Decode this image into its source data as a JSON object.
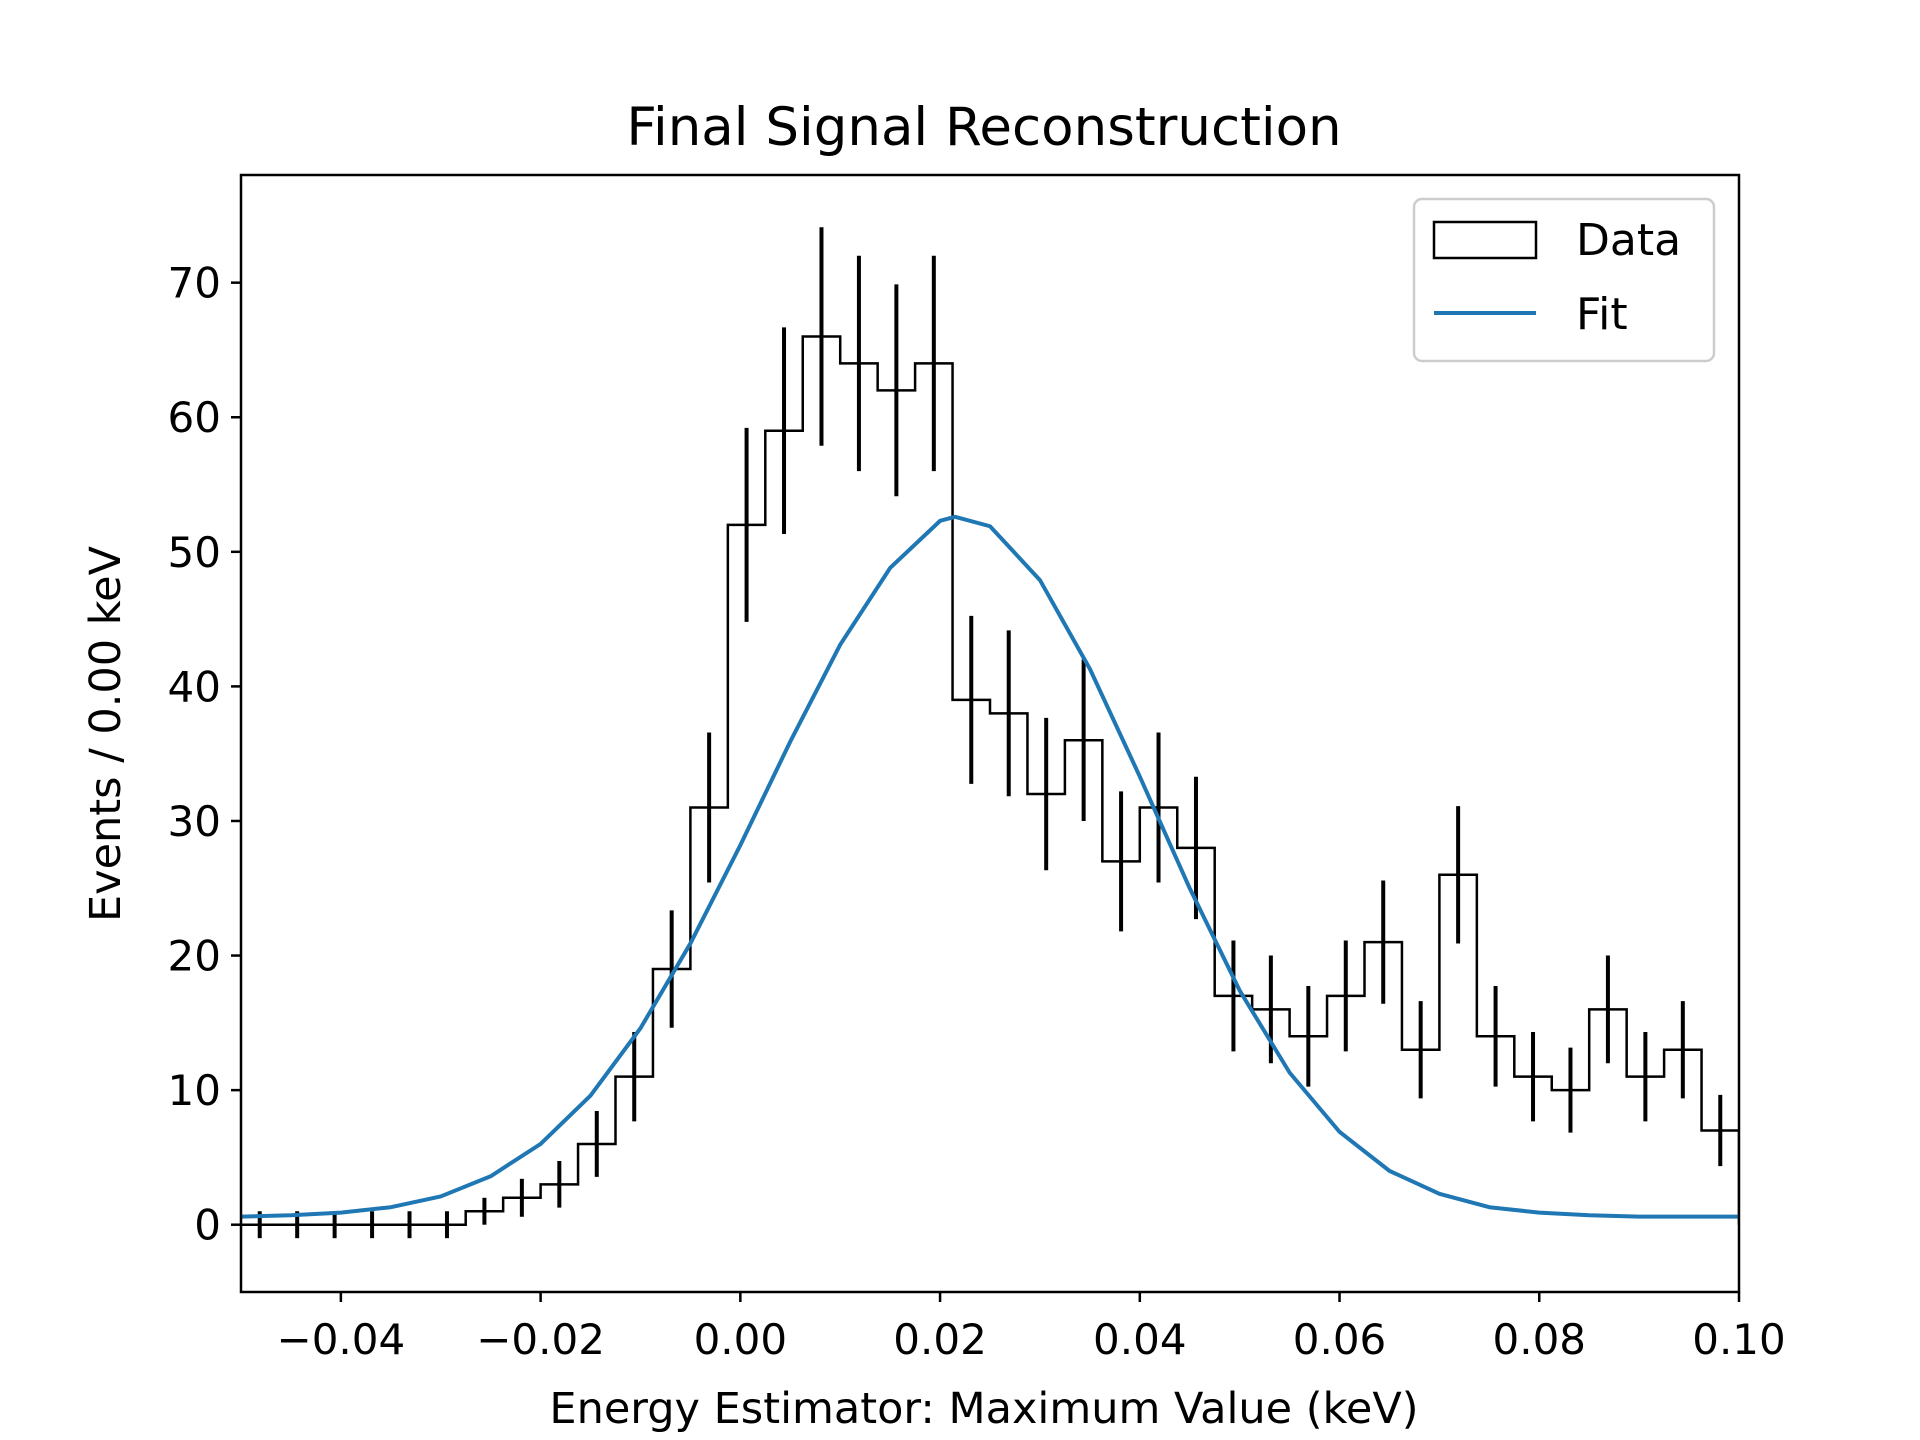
{
  "chart_data": {
    "type": "histogram",
    "title": "Final Signal Reconstruction",
    "xlabel": "Energy Estimator: Maximum Value (keV)",
    "ylabel": "Events / 0.00 keV",
    "xlim": [
      -0.05,
      0.1
    ],
    "ylim": [
      -5,
      78
    ],
    "xticks": [
      -0.04,
      -0.02,
      0.0,
      0.02,
      0.04,
      0.06,
      0.08,
      0.1
    ],
    "xtick_labels": [
      "−0.04",
      "−0.02",
      "0.00",
      "0.02",
      "0.04",
      "0.06",
      "0.08",
      "0.10"
    ],
    "yticks": [
      0,
      10,
      20,
      30,
      40,
      50,
      60,
      70
    ],
    "ytick_labels": [
      "0",
      "10",
      "20",
      "30",
      "40",
      "50",
      "60",
      "70"
    ],
    "grid": false,
    "legend_position": "top-right",
    "legend": [
      {
        "label": "Data",
        "style": "outline-box",
        "color": "#000000"
      },
      {
        "label": "Fit",
        "style": "line",
        "color": "#1f77b4"
      }
    ],
    "series": [
      {
        "name": "Data",
        "kind": "step-histogram-with-errorbars",
        "color": "#000000",
        "bin_width": 0.00375,
        "bin_centers": [
          -0.048125,
          -0.044375,
          -0.040625,
          -0.036875,
          -0.033125,
          -0.029375,
          -0.025625,
          -0.021875,
          -0.018125,
          -0.014375,
          -0.010625,
          -0.006875,
          -0.003125,
          0.000625,
          0.004375,
          0.008125,
          0.011875,
          0.015625,
          0.019375,
          0.023125,
          0.026875,
          0.030625,
          0.034375,
          0.038125,
          0.041875,
          0.045625,
          0.049375,
          0.053125,
          0.056875,
          0.060625,
          0.064375,
          0.068125,
          0.071875,
          0.075625,
          0.079375,
          0.083125,
          0.086875,
          0.090625,
          0.094375,
          0.098125
        ],
        "counts": [
          0,
          0,
          0,
          0,
          0,
          0,
          1,
          2,
          3,
          6,
          11,
          19,
          31,
          52,
          59,
          66,
          64,
          62,
          64,
          39,
          38,
          32,
          36,
          27,
          31,
          28,
          17,
          16,
          14,
          17,
          21,
          13,
          26,
          14,
          11,
          10,
          16,
          11,
          13,
          7
        ],
        "errors": [
          1,
          1,
          1,
          1,
          1,
          1,
          1,
          1.41,
          1.73,
          2.45,
          3.32,
          4.36,
          5.57,
          7.21,
          7.68,
          8.12,
          8.0,
          7.87,
          8.0,
          6.24,
          6.16,
          5.66,
          6.0,
          5.2,
          5.57,
          5.29,
          4.12,
          4.0,
          3.74,
          4.12,
          4.58,
          3.61,
          5.1,
          3.74,
          3.32,
          3.16,
          4.0,
          3.32,
          3.61,
          2.65
        ]
      },
      {
        "name": "Fit",
        "kind": "line",
        "color": "#1f77b4",
        "x": [
          -0.05,
          -0.045,
          -0.04,
          -0.035,
          -0.03,
          -0.025,
          -0.02,
          -0.015,
          -0.01,
          -0.005,
          0.0,
          0.005,
          0.01,
          0.015,
          0.02,
          0.0215,
          0.025,
          0.03,
          0.035,
          0.04,
          0.045,
          0.05,
          0.055,
          0.06,
          0.065,
          0.07,
          0.075,
          0.08,
          0.085,
          0.09,
          0.095,
          0.1
        ],
        "y": [
          0.6,
          0.7,
          0.9,
          1.3,
          2.1,
          3.6,
          6.0,
          9.6,
          14.6,
          20.9,
          28.2,
          35.9,
          43.1,
          48.8,
          52.3,
          52.6,
          51.9,
          47.9,
          41.3,
          33.3,
          25.0,
          17.4,
          11.3,
          6.9,
          4.0,
          2.3,
          1.3,
          0.9,
          0.7,
          0.6,
          0.6,
          0.6
        ]
      }
    ]
  }
}
